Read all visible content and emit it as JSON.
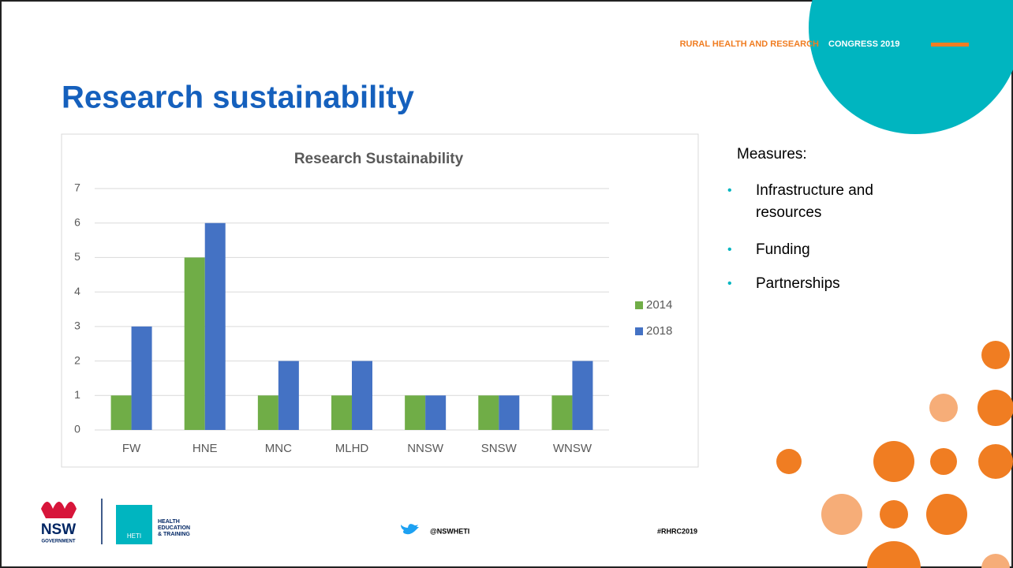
{
  "slide": {
    "banner_left": "RURAL HEALTH AND RESEARCH",
    "banner_right": "CONGRESS 2019",
    "title": "Research sustainability",
    "measures_heading": "Measures:",
    "measures": [
      "Infrastructure and resources",
      "Funding",
      "Partnerships"
    ],
    "footer": {
      "nsw": "NSW",
      "government": "GOVERNMENT",
      "heti_badge": "HETI",
      "heti_text": [
        "HEALTH",
        "EDUCATION",
        "& TRAINING"
      ],
      "twitter": "@NSWHETI",
      "hashtag": "#RHRC2019"
    }
  },
  "chart_data": {
    "type": "bar",
    "title": "Research Sustainability",
    "categories": [
      "FW",
      "HNE",
      "MNC",
      "MLHD",
      "NNSW",
      "SNSW",
      "WNSW"
    ],
    "series": [
      {
        "name": "2014",
        "color": "#70ad47",
        "values": [
          1,
          5,
          1,
          1,
          1,
          1,
          1
        ]
      },
      {
        "name": "2018",
        "color": "#4472c4",
        "values": [
          3,
          6,
          2,
          2,
          1,
          1,
          2
        ]
      }
    ],
    "ylim": [
      0,
      7
    ],
    "yticks": [
      0,
      1,
      2,
      3,
      4,
      5,
      6,
      7
    ],
    "grid": true,
    "legend": "right"
  }
}
